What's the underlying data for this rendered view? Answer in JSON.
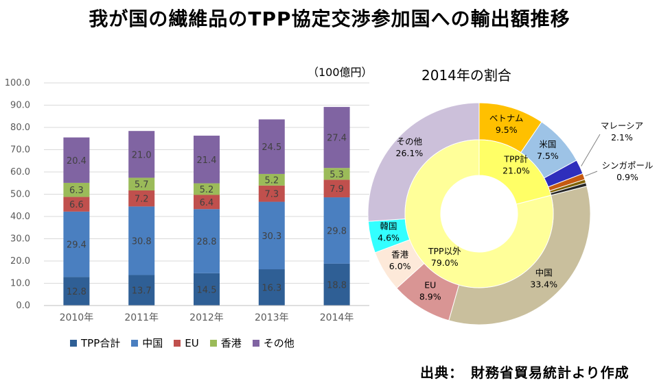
{
  "title": "我が国の繊維品のTPP協定交渉参加国への輸出額推移",
  "unit_label": "（100億円）",
  "pie_title": "2014年の割合",
  "source": "出典：　財務省貿易統計より作成",
  "chart_data": [
    {
      "type": "bar",
      "stacked": true,
      "categories": [
        "2010年",
        "2011年",
        "2012年",
        "2013年",
        "2014年"
      ],
      "ylim": [
        0,
        100
      ],
      "yticks": [
        "0.0",
        "10.0",
        "20.0",
        "30.0",
        "40.0",
        "50.0",
        "60.0",
        "70.0",
        "80.0",
        "90.0",
        "100.0"
      ],
      "legend_position": "bottom",
      "grid": true,
      "series": [
        {
          "name": "TPP合計",
          "color": "#2f5f95",
          "values": [
            12.8,
            13.7,
            14.5,
            16.3,
            18.8
          ],
          "labels": [
            "12.8",
            "13.7",
            "14.5",
            "16.3",
            "18.8"
          ]
        },
        {
          "name": "中国",
          "color": "#4a7fc0",
          "values": [
            29.4,
            30.8,
            28.8,
            30.3,
            29.8
          ],
          "labels": [
            "29.4",
            "30.8",
            "28.8",
            "30.3",
            "29.8"
          ]
        },
        {
          "name": "EU",
          "color": "#c0504d",
          "values": [
            6.6,
            7.2,
            6.4,
            7.3,
            7.9
          ],
          "labels": [
            "6.6",
            "7.2",
            "6.4",
            "7.3",
            "7.9"
          ]
        },
        {
          "name": "香港",
          "color": "#9bbb59",
          "values": [
            6.3,
            5.7,
            5.2,
            5.2,
            5.3
          ],
          "labels": [
            "6.3",
            "5.7",
            "5.2",
            "5.2",
            "5.3"
          ]
        },
        {
          "name": "その他",
          "color": "#8064a2",
          "values": [
            20.4,
            21.0,
            21.4,
            24.5,
            27.4
          ],
          "labels": [
            "20.4",
            "21.0",
            "21.4",
            "24.5",
            "27.4"
          ]
        }
      ]
    },
    {
      "type": "pie",
      "donut": true,
      "outer_ring": [
        {
          "name": "ベトナム",
          "value": 9.5,
          "label": "9.5%",
          "color": "#ffc000"
        },
        {
          "name": "米国",
          "value": 7.5,
          "label": "7.5%",
          "color": "#9dc3e6"
        },
        {
          "name": "マレーシア",
          "value": 2.1,
          "label": "2.1%",
          "color": "#2e2ebc"
        },
        {
          "name": "シンガポール",
          "value": 0.9,
          "label": "0.9%",
          "color": "#c55a11"
        },
        {
          "name": "",
          "value": 0.5,
          "label": "",
          "color": "#7f6000"
        },
        {
          "name": "",
          "value": 0.5,
          "label": "",
          "color": "#262626"
        },
        {
          "name": "中国",
          "value": 33.4,
          "label": "33.4%",
          "color": "#c9bf9d"
        },
        {
          "name": "EU",
          "value": 8.9,
          "label": "8.9%",
          "color": "#d99594"
        },
        {
          "name": "香港",
          "value": 6.0,
          "label": "6.0%",
          "color": "#fde9d9"
        },
        {
          "name": "韓国",
          "value": 4.6,
          "label": "4.6%",
          "color": "#33ffff"
        },
        {
          "name": "その他",
          "value": 26.1,
          "label": "26.1%",
          "color": "#ccc0da"
        }
      ],
      "inner_ring": [
        {
          "name": "TPP計",
          "value": 21.0,
          "label": "21.0%",
          "color": "#ffff66"
        },
        {
          "name": "TPP以外",
          "value": 79.0,
          "label": "79.0%",
          "color": "#ffff99"
        }
      ]
    }
  ]
}
